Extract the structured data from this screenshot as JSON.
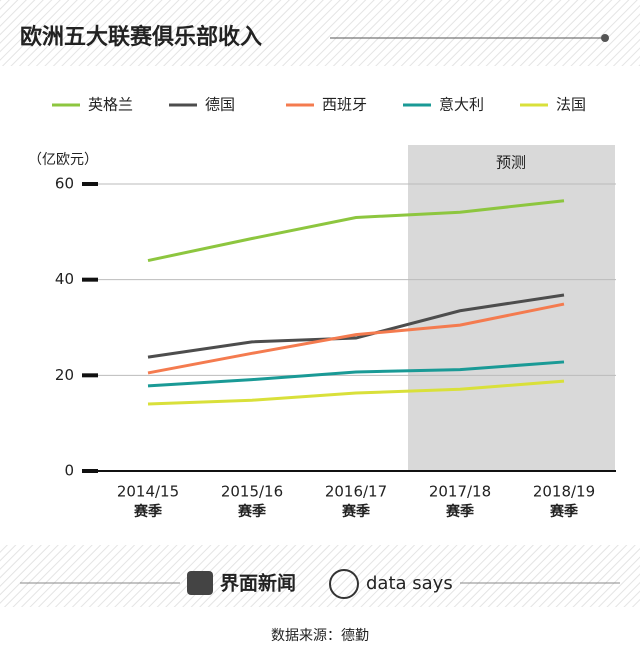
{
  "chart_data": {
    "type": "line",
    "title": "欧洲五大联赛俱乐部收入",
    "y_label": "（亿欧元）",
    "annotation": "预测",
    "categories": [
      "2014/15",
      "2015/16",
      "2016/17",
      "2017/18",
      "2018/19"
    ],
    "category_sublabels": [
      "赛季",
      "赛季",
      "赛季",
      "赛季",
      "赛季"
    ],
    "series": [
      {
        "name": "英格兰",
        "color": "#8dc63f",
        "values": [
          44,
          48.6,
          53,
          54.1,
          56.5
        ]
      },
      {
        "name": "德国",
        "color": "#4d4d4d",
        "values": [
          23.8,
          27,
          27.8,
          33.5,
          36.8
        ]
      },
      {
        "name": "西班牙",
        "color": "#f47b4f",
        "values": [
          20.5,
          24.6,
          28.5,
          30.5,
          34.9
        ]
      },
      {
        "name": "意大利",
        "color": "#1a9a96",
        "values": [
          17.8,
          19.1,
          20.7,
          21.2,
          22.8
        ]
      },
      {
        "name": "法国",
        "color": "#d9e03a",
        "values": [
          14,
          14.8,
          16.3,
          17.1,
          18.8
        ]
      }
    ],
    "ylim": [
      0,
      60
    ],
    "yticks": [
      0,
      20,
      40,
      60
    ],
    "grid": true,
    "legend": "top"
  },
  "footer": {
    "brand": "界面新闻",
    "brand2": "data says",
    "source": "数据来源：德勤"
  }
}
